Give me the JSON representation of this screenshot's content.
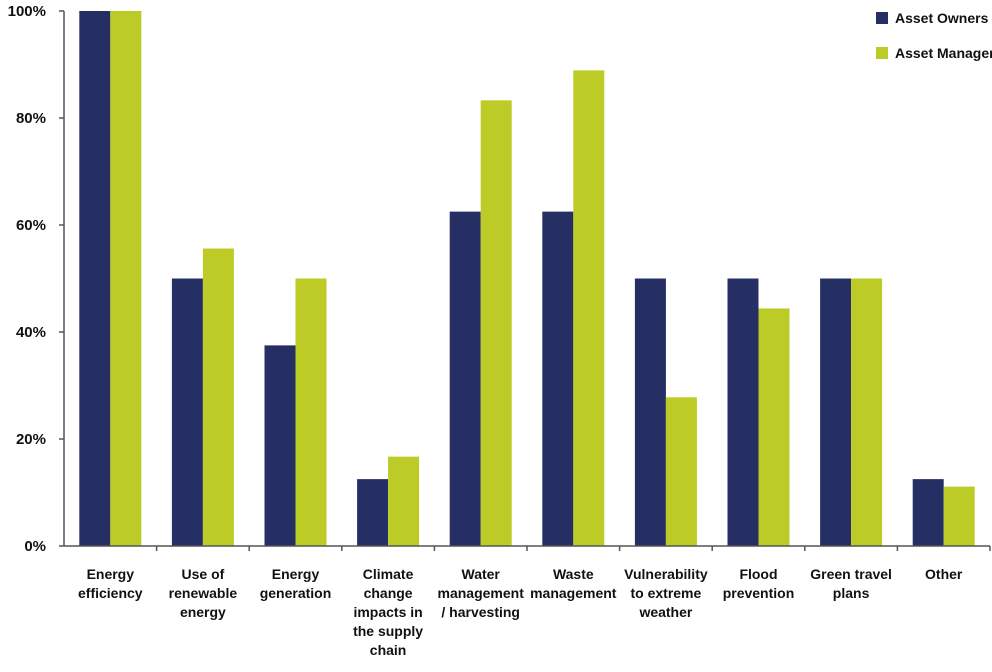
{
  "chart_data": {
    "type": "bar",
    "title": "",
    "xlabel": "",
    "ylabel": "",
    "ylim": [
      0,
      100
    ],
    "yticks": [
      "0%",
      "20%",
      "40%",
      "60%",
      "80%",
      "100%"
    ],
    "grid": false,
    "legend_position": "top-right",
    "categories": [
      [
        "Energy",
        "efficiency"
      ],
      [
        "Use of",
        "renewable",
        "energy"
      ],
      [
        "Energy",
        "generation"
      ],
      [
        "Climate",
        "change",
        "impacts in",
        "the supply",
        "chain"
      ],
      [
        "Water",
        "management",
        "/ harvesting"
      ],
      [
        "Waste",
        "management"
      ],
      [
        "Vulnerability",
        "to extreme",
        "weather"
      ],
      [
        "Flood",
        "prevention"
      ],
      [
        "Green travel",
        "plans"
      ],
      [
        "Other"
      ]
    ],
    "series": [
      {
        "name": "Asset Owners",
        "color": "#262f64",
        "values": [
          100,
          50,
          37.5,
          12.5,
          62.5,
          62.5,
          50,
          50,
          50,
          12.5
        ]
      },
      {
        "name": "Asset Managers",
        "color": "#bccb26",
        "values": [
          100,
          55.6,
          50,
          16.7,
          83.3,
          88.9,
          27.8,
          44.4,
          50,
          11.1
        ]
      }
    ]
  }
}
